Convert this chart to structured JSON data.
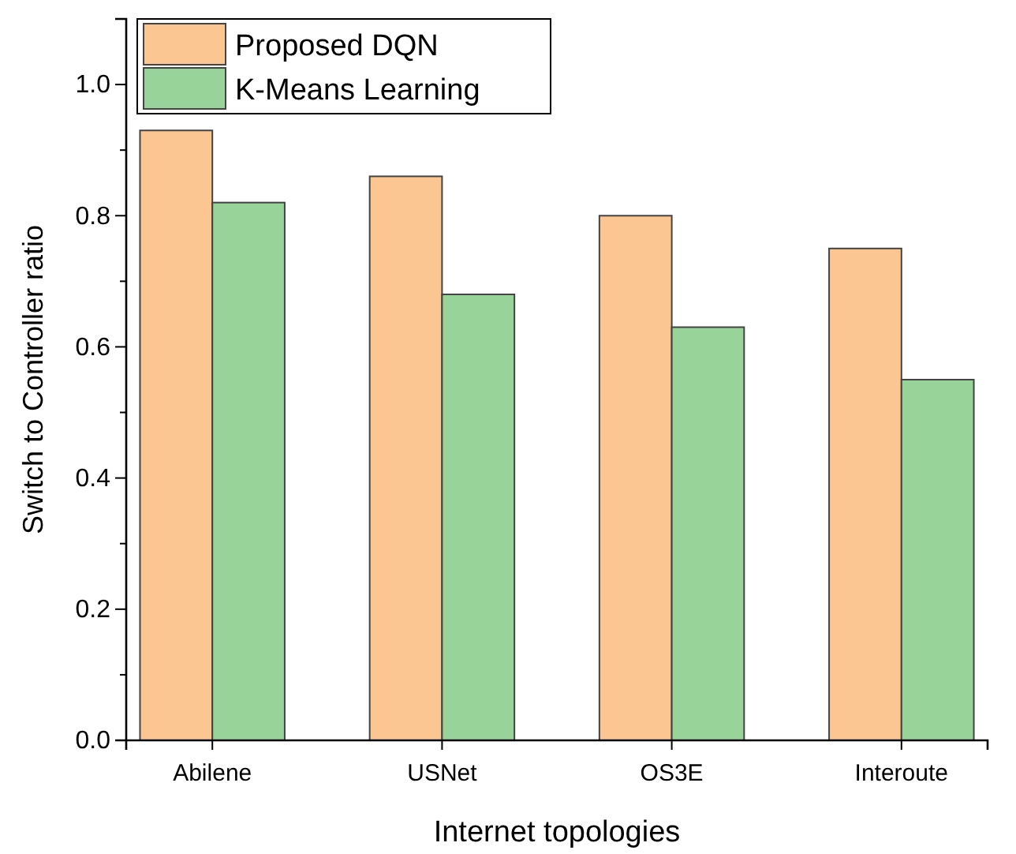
{
  "chart_data": {
    "type": "bar",
    "xlabel": "Internet topologies",
    "ylabel": "Switch to Controller ratio",
    "categories": [
      "Abilene",
      "USNet",
      "OS3E",
      "Interoute"
    ],
    "series": [
      {
        "name": "Proposed DQN",
        "color": "#fbc692",
        "values": [
          0.93,
          0.86,
          0.8,
          0.75
        ]
      },
      {
        "name": "K-Means Learning",
        "color": "#98d49a",
        "values": [
          0.82,
          0.68,
          0.63,
          0.55
        ]
      }
    ],
    "ylim": [
      0,
      1.1
    ],
    "yticks": [
      "0.0",
      0.2,
      0.4,
      0.6,
      0.8,
      "1.0"
    ],
    "grid": false,
    "legend": "top left"
  }
}
